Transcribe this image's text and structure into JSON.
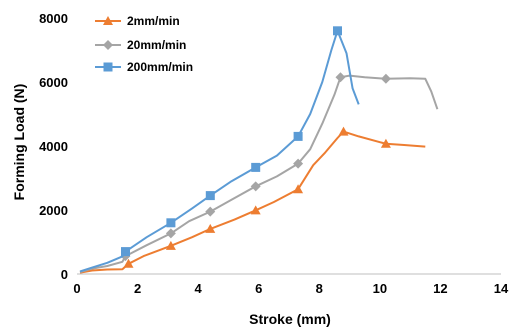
{
  "chart_data": {
    "type": "line",
    "xlabel": "Stroke (mm)",
    "ylabel": "Forming Load (N)",
    "xlim": [
      0,
      14
    ],
    "ylim": [
      0,
      8000
    ],
    "x_ticks": [
      "0",
      "2",
      "4",
      "6",
      "8",
      "10",
      "12",
      "14"
    ],
    "y_ticks": [
      "0",
      "2000",
      "4000",
      "6000",
      "8000"
    ],
    "grid": false,
    "legend_position": "top-left",
    "series": [
      {
        "name": "2mm/min",
        "color": "#ED7D31",
        "marker": "triangle",
        "points": [
          [
            0.1,
            40
          ],
          [
            0.5,
            110
          ],
          [
            1.0,
            140
          ],
          [
            1.5,
            150
          ],
          [
            1.7,
            320
          ],
          [
            2.2,
            560
          ],
          [
            3.1,
            880
          ],
          [
            3.8,
            1150
          ],
          [
            4.4,
            1410
          ],
          [
            5.2,
            1700
          ],
          [
            5.9,
            1990
          ],
          [
            6.5,
            2250
          ],
          [
            7.3,
            2650
          ],
          [
            7.8,
            3400
          ],
          [
            8.2,
            3800
          ],
          [
            8.6,
            4250
          ],
          [
            8.8,
            4450
          ],
          [
            9.3,
            4300
          ],
          [
            10.2,
            4070
          ],
          [
            10.8,
            4030
          ],
          [
            11.5,
            3980
          ]
        ],
        "marker_points": [
          [
            1.7,
            320
          ],
          [
            3.1,
            880
          ],
          [
            4.4,
            1410
          ],
          [
            5.9,
            1990
          ],
          [
            7.3,
            2650
          ],
          [
            8.8,
            4450
          ],
          [
            10.2,
            4070
          ]
        ]
      },
      {
        "name": "20mm/min",
        "color": "#A5A5A5",
        "marker": "diamond",
        "points": [
          [
            0.1,
            60
          ],
          [
            0.5,
            170
          ],
          [
            1.0,
            250
          ],
          [
            1.5,
            380
          ],
          [
            1.6,
            560
          ],
          [
            2.3,
            900
          ],
          [
            3.1,
            1270
          ],
          [
            3.7,
            1650
          ],
          [
            4.4,
            1950
          ],
          [
            5.1,
            2320
          ],
          [
            5.9,
            2740
          ],
          [
            6.6,
            3050
          ],
          [
            7.3,
            3450
          ],
          [
            7.7,
            3900
          ],
          [
            8.1,
            4700
          ],
          [
            8.5,
            5600
          ],
          [
            8.7,
            6150
          ],
          [
            9.0,
            6200
          ],
          [
            9.5,
            6150
          ],
          [
            10.2,
            6100
          ],
          [
            11.0,
            6120
          ],
          [
            11.5,
            6100
          ],
          [
            11.7,
            5700
          ],
          [
            11.9,
            5150
          ]
        ],
        "marker_points": [
          [
            1.6,
            560
          ],
          [
            3.1,
            1270
          ],
          [
            4.4,
            1950
          ],
          [
            5.9,
            2740
          ],
          [
            7.3,
            3450
          ],
          [
            8.7,
            6150
          ],
          [
            10.2,
            6100
          ]
        ]
      },
      {
        "name": "200mm/min",
        "color": "#5B9BD5",
        "marker": "square",
        "points": [
          [
            0.1,
            80
          ],
          [
            0.5,
            200
          ],
          [
            1.0,
            350
          ],
          [
            1.5,
            550
          ],
          [
            1.6,
            700
          ],
          [
            2.3,
            1150
          ],
          [
            3.1,
            1600
          ],
          [
            3.8,
            2050
          ],
          [
            4.4,
            2450
          ],
          [
            5.1,
            2900
          ],
          [
            5.9,
            3330
          ],
          [
            6.6,
            3700
          ],
          [
            7.3,
            4300
          ],
          [
            7.7,
            5000
          ],
          [
            8.1,
            6000
          ],
          [
            8.4,
            7000
          ],
          [
            8.6,
            7600
          ],
          [
            8.9,
            6900
          ],
          [
            9.1,
            5800
          ],
          [
            9.3,
            5300
          ]
        ],
        "marker_points": [
          [
            1.6,
            700
          ],
          [
            3.1,
            1600
          ],
          [
            4.4,
            2450
          ],
          [
            5.9,
            3330
          ],
          [
            7.3,
            4300
          ],
          [
            8.6,
            7600
          ]
        ]
      }
    ]
  }
}
